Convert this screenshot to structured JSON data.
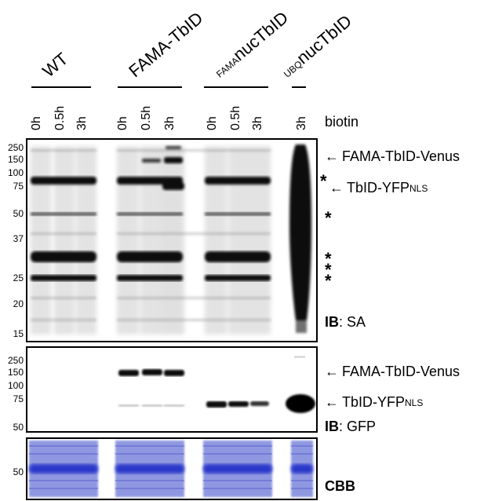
{
  "groups": [
    {
      "label": "WT",
      "sub": ""
    },
    {
      "label": "FAMA-TbID",
      "sub": ""
    },
    {
      "label": "nucTbID",
      "sub": "FAMA"
    },
    {
      "label": "nucTbID",
      "sub": "UBQ"
    }
  ],
  "timepoints": [
    "0h",
    "0.5h",
    "3h",
    "0h",
    "0.5h",
    "3h",
    "0h",
    "0.5h",
    "3h",
    "3h"
  ],
  "biotin_label": "biotin",
  "panel_sa": {
    "mw_markers": [
      "250",
      "150",
      "100",
      "75",
      "50",
      "37",
      "25",
      "20",
      "15"
    ],
    "annotations": {
      "fama_venus": "FAMA-TbID-Venus",
      "tbid_yfp": "TbID-YFP",
      "tbid_yfp_sub": "NLS"
    },
    "stars": [
      "*",
      "*",
      "*",
      "*",
      "*"
    ],
    "ib_prefix": "IB",
    "ib_target": ": SA"
  },
  "panel_gfp": {
    "mw_markers": [
      "250",
      "150",
      "100",
      "75",
      "50"
    ],
    "annotations": {
      "fama_venus": "FAMA-TbID-Venus",
      "tbid_yfp": "TbID-YFP",
      "tbid_yfp_sub": "NLS"
    },
    "ib_prefix": "IB",
    "ib_target": ": GFP"
  },
  "panel_cbb": {
    "mw_markers": [
      "50"
    ],
    "label": "CBB"
  },
  "colors": {
    "band": "#1a1a1a",
    "smear": "#9a9a9a",
    "cbb_bg": "#8f97e0",
    "cbb_band": "#2b39c9"
  }
}
